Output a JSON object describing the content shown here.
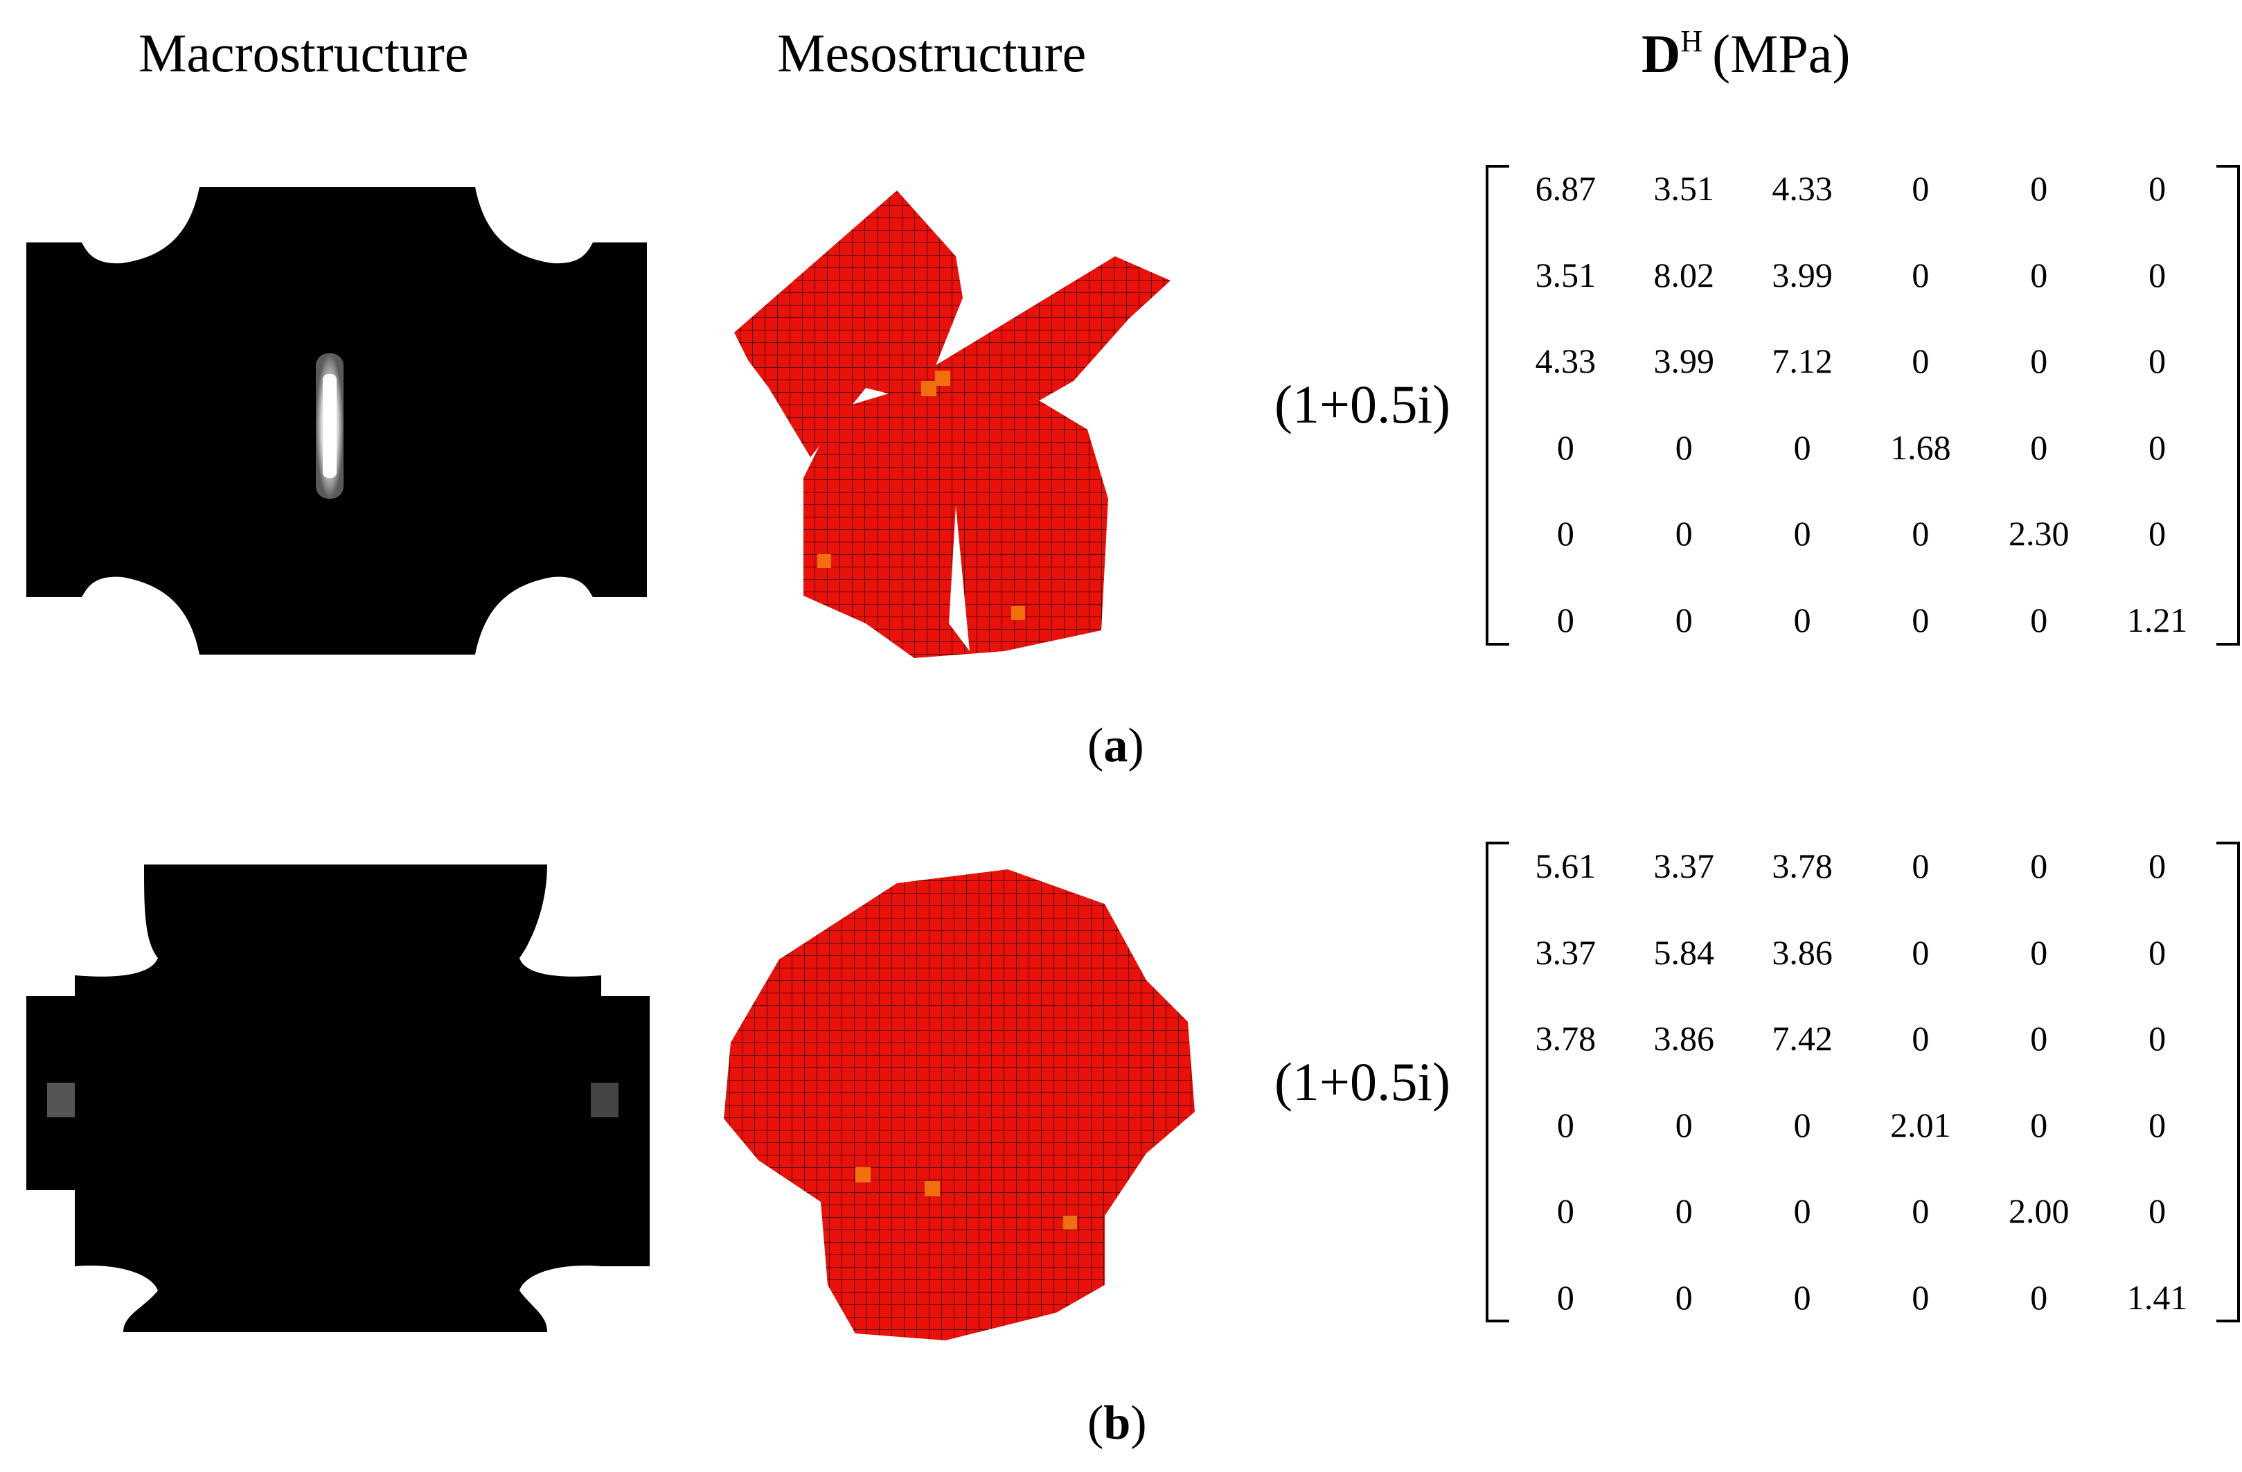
{
  "headers": {
    "macro": "Macrostructure",
    "meso": "Mesostructure",
    "dh_symbol": "D",
    "dh_sup": "H",
    "dh_unit": "(MPa)"
  },
  "factor": "(1+0.5i)",
  "panel_a": {
    "caption_letter": "a",
    "matrix": [
      [
        "6.87",
        "3.51",
        "4.33",
        "0",
        "0",
        "0"
      ],
      [
        "3.51",
        "8.02",
        "3.99",
        "0",
        "0",
        "0"
      ],
      [
        "4.33",
        "3.99",
        "7.12",
        "0",
        "0",
        "0"
      ],
      [
        "0",
        "0",
        "0",
        "1.68",
        "0",
        "0"
      ],
      [
        "0",
        "0",
        "0",
        "0",
        "2.30",
        "0"
      ],
      [
        "0",
        "0",
        "0",
        "0",
        "0",
        "1.21"
      ]
    ]
  },
  "panel_b": {
    "caption_letter": "b",
    "matrix": [
      [
        "5.61",
        "3.37",
        "3.78",
        "0",
        "0",
        "0"
      ],
      [
        "3.37",
        "5.84",
        "3.86",
        "0",
        "0",
        "0"
      ],
      [
        "3.78",
        "3.86",
        "7.42",
        "0",
        "0",
        "0"
      ],
      [
        "0",
        "0",
        "0",
        "2.01",
        "0",
        "0"
      ],
      [
        "0",
        "0",
        "0",
        "0",
        "2.00",
        "0"
      ],
      [
        "0",
        "0",
        "0",
        "0",
        "0",
        "1.41"
      ]
    ]
  },
  "colors": {
    "solid": "#000000",
    "voxel_red": "#e8120a",
    "voxel_orange": "#f07010",
    "voxel_edge": "#5a0000"
  }
}
